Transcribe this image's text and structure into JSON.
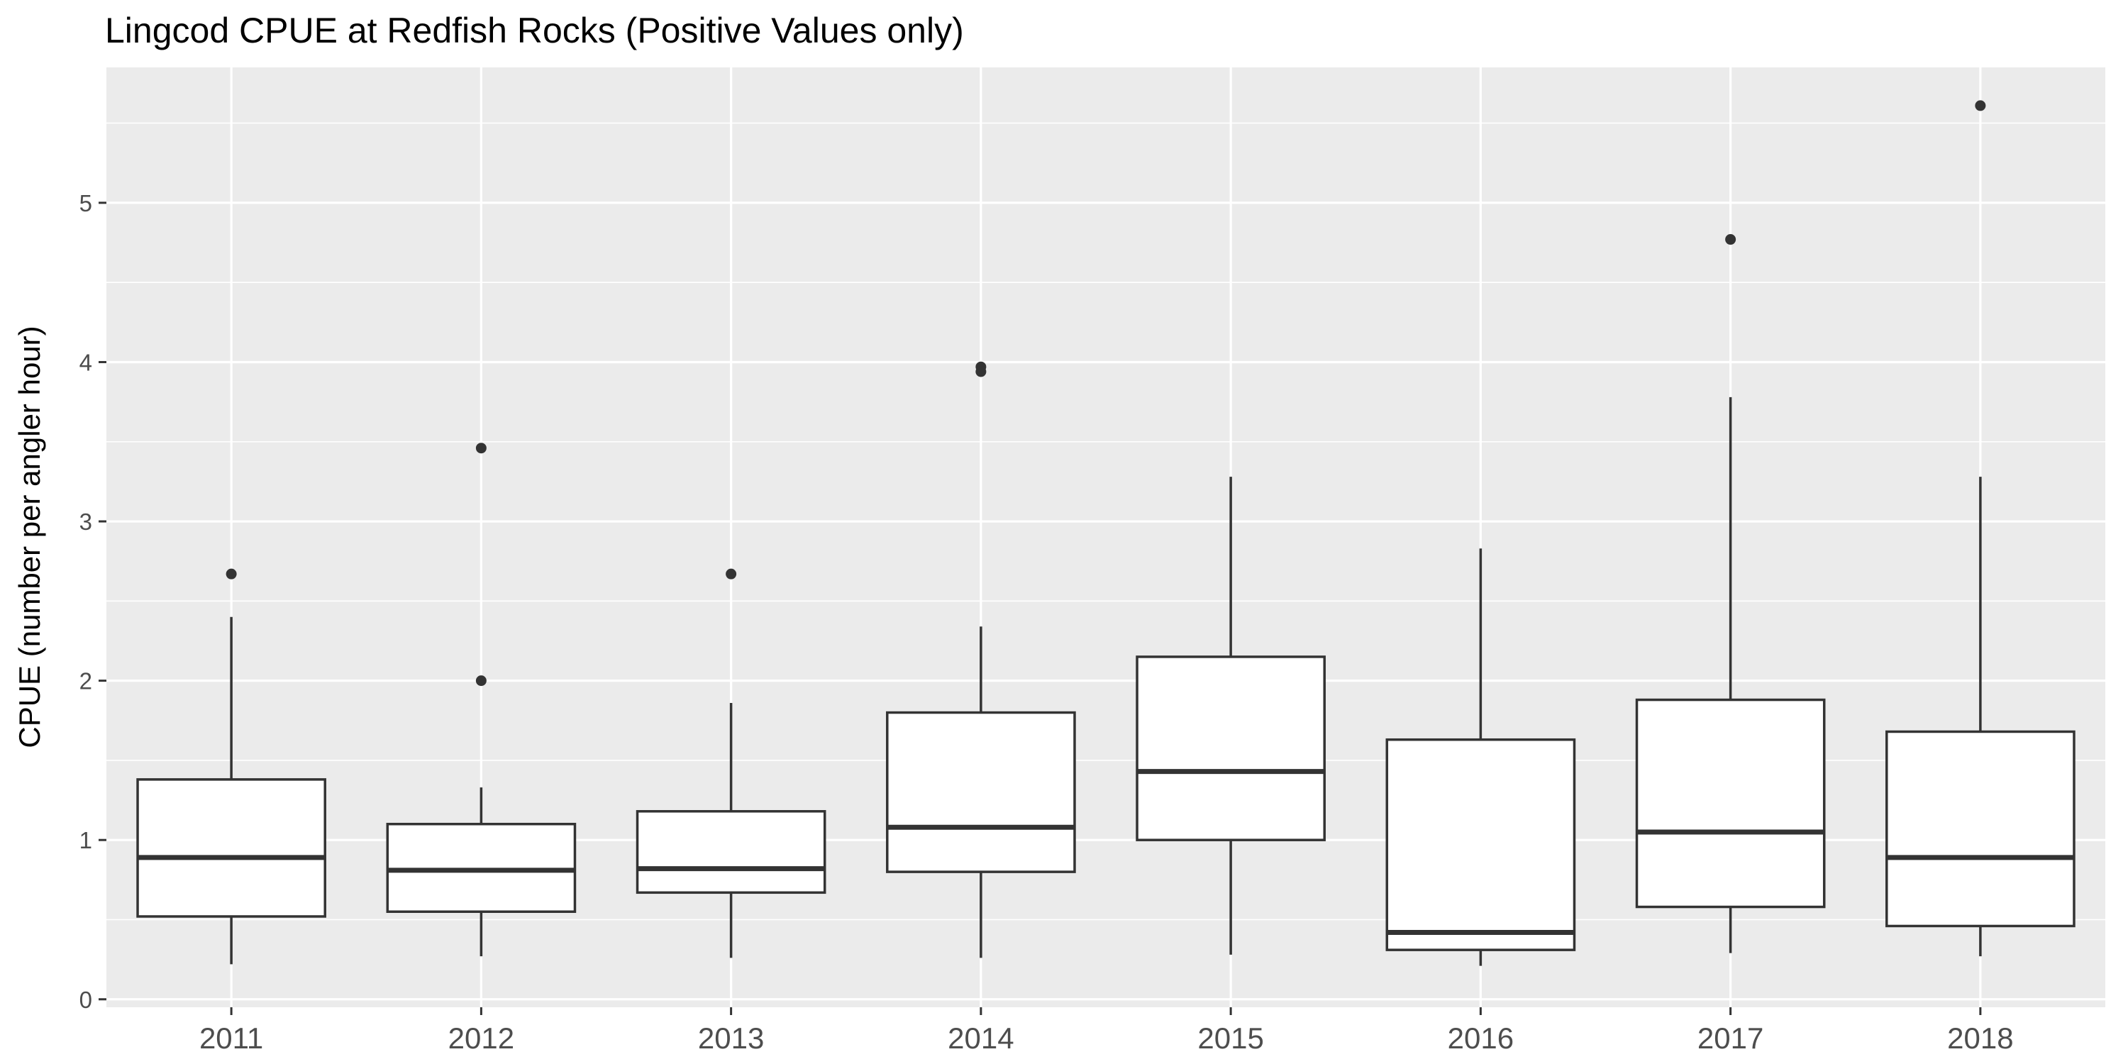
{
  "chart_data": {
    "type": "boxplot",
    "title": "Lingcod CPUE at Redfish Rocks (Positive Values only)",
    "xlabel": "",
    "ylabel": "CPUE (number per angler hour)",
    "ylim": [
      -0.05,
      5.85
    ],
    "yticks": [
      0,
      1,
      2,
      3,
      4,
      5
    ],
    "grid": true,
    "categories": [
      "2011",
      "2012",
      "2013",
      "2014",
      "2015",
      "2016",
      "2017",
      "2018"
    ],
    "boxes": [
      {
        "category": "2011",
        "min": 0.22,
        "q1": 0.52,
        "median": 0.89,
        "q3": 1.38,
        "max": 2.4,
        "outliers": [
          2.67
        ]
      },
      {
        "category": "2012",
        "min": 0.27,
        "q1": 0.55,
        "median": 0.81,
        "q3": 1.1,
        "max": 1.33,
        "outliers": [
          2.0,
          3.46
        ]
      },
      {
        "category": "2013",
        "min": 0.26,
        "q1": 0.67,
        "median": 0.82,
        "q3": 1.18,
        "max": 1.86,
        "outliers": [
          2.67
        ]
      },
      {
        "category": "2014",
        "min": 0.26,
        "q1": 0.8,
        "median": 1.08,
        "q3": 1.8,
        "max": 2.34,
        "outliers": [
          3.94,
          3.97
        ]
      },
      {
        "category": "2015",
        "min": 0.28,
        "q1": 1.0,
        "median": 1.43,
        "q3": 2.15,
        "max": 3.28,
        "outliers": []
      },
      {
        "category": "2016",
        "min": 0.21,
        "q1": 0.31,
        "median": 0.42,
        "q3": 1.63,
        "max": 2.83,
        "outliers": []
      },
      {
        "category": "2017",
        "min": 0.29,
        "q1": 0.58,
        "median": 1.05,
        "q3": 1.88,
        "max": 3.78,
        "outliers": [
          4.77
        ]
      },
      {
        "category": "2018",
        "min": 0.27,
        "q1": 0.46,
        "median": 0.89,
        "q3": 1.68,
        "max": 3.28,
        "outliers": [
          5.61
        ]
      }
    ],
    "colors": {
      "panel": "#ebebeb",
      "grid_major": "#ffffff",
      "box_fill": "#ffffff",
      "box_line": "#333333",
      "tick_text": "#4d4d4d",
      "axis_text": "#000000"
    }
  }
}
